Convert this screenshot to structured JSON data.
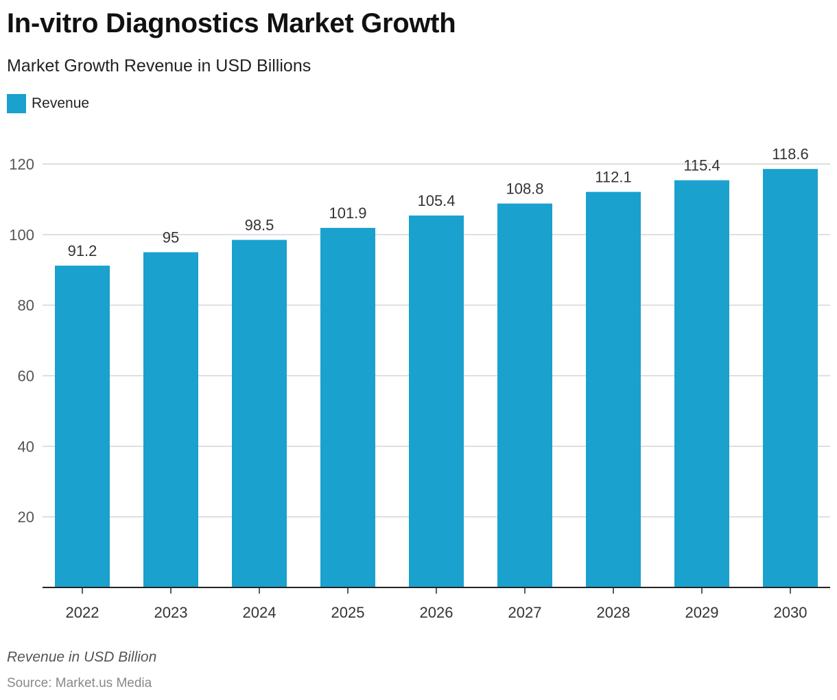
{
  "header": {
    "title": "In-vitro Diagnostics Market Growth",
    "subtitle": "Market Growth Revenue in USD Billions"
  },
  "footer": {
    "caption": "Revenue in USD Billion",
    "source": "Source: Market.us Media"
  },
  "colors": {
    "bar": "#1aa1cd",
    "grid": "#d4d4d4",
    "axis": "#222222",
    "tick_text": "#555555",
    "label_text": "#333333"
  },
  "chart_data": {
    "type": "bar",
    "categories": [
      "2022",
      "2023",
      "2024",
      "2025",
      "2026",
      "2027",
      "2028",
      "2029",
      "2030"
    ],
    "series": [
      {
        "name": "Revenue",
        "values": [
          91.2,
          95,
          98.5,
          101.9,
          105.4,
          108.8,
          112.1,
          115.4,
          118.6
        ],
        "labels": [
          "91.2",
          "95",
          "98.5",
          "101.9",
          "105.4",
          "108.8",
          "112.1",
          "115.4",
          "118.6"
        ]
      }
    ],
    "ylim": [
      0,
      120
    ],
    "yticks": [
      20,
      40,
      60,
      80,
      100,
      120
    ],
    "grid": true,
    "legend_position": "top-left"
  }
}
